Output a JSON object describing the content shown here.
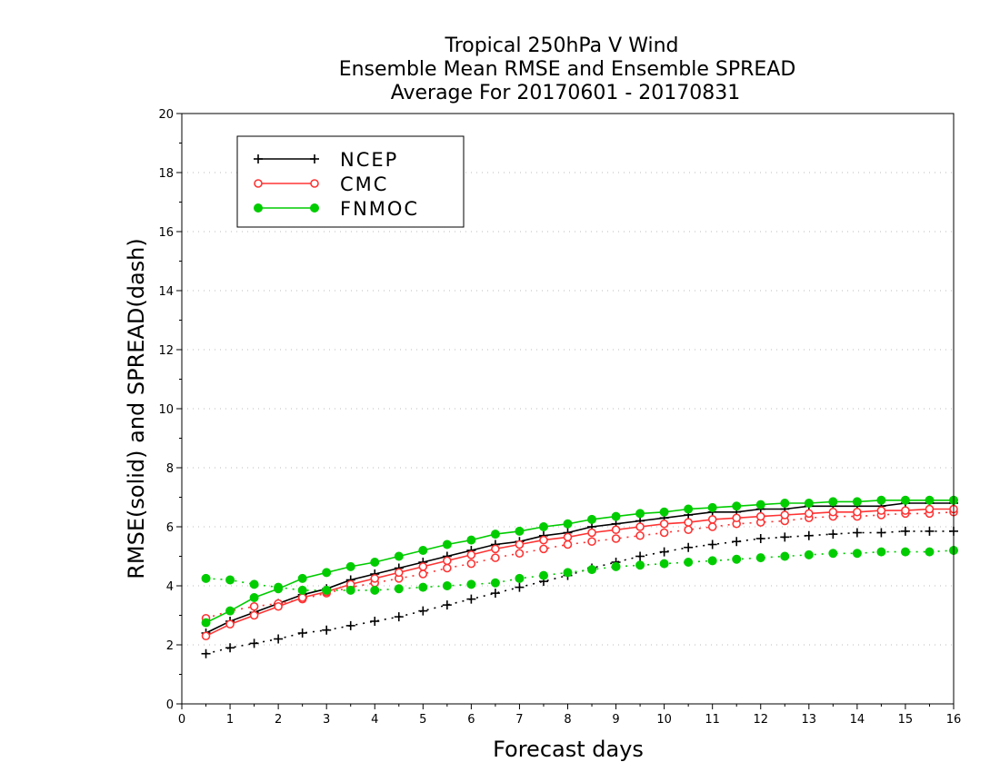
{
  "chart_data": {
    "type": "line",
    "title": [
      "Tropical 250hPa V Wind",
      "Ensemble Mean RMSE and Ensemble SPREAD",
      "Average For 20170601 - 20170831"
    ],
    "xlabel": "Forecast days",
    "ylabel": "RMSE(solid) and SPREAD(dash)",
    "xlim": [
      0,
      16
    ],
    "ylim": [
      0,
      20
    ],
    "xticks": [
      0,
      1,
      2,
      3,
      4,
      5,
      6,
      7,
      8,
      9,
      10,
      11,
      12,
      13,
      14,
      15,
      16
    ],
    "xtick_labels": [
      "0",
      "1",
      "2",
      "3",
      "4",
      "5",
      "6",
      "7",
      "8",
      "9",
      "10",
      "11",
      "12",
      "13",
      "14",
      "15",
      "16"
    ],
    "yticks": [
      0,
      2,
      4,
      6,
      8,
      10,
      12,
      14,
      16,
      18,
      20
    ],
    "ytick_labels": [
      "0",
      "2",
      "4",
      "6",
      "8",
      "10",
      "12",
      "14",
      "16",
      "18",
      "20"
    ],
    "grid": true,
    "legend_position": "top-left",
    "x": [
      0.5,
      1,
      1.5,
      2,
      2.5,
      3,
      3.5,
      4,
      4.5,
      5,
      5.5,
      6,
      6.5,
      7,
      7.5,
      8,
      8.5,
      9,
      9.5,
      10,
      10.5,
      11,
      11.5,
      12,
      12.5,
      13,
      13.5,
      14,
      14.5,
      15,
      15.5,
      16
    ],
    "series": [
      {
        "name": "NCEP",
        "color": "#000000",
        "marker": "plus",
        "rmse": [
          2.4,
          2.8,
          3.1,
          3.4,
          3.7,
          3.9,
          4.2,
          4.4,
          4.6,
          4.8,
          5.0,
          5.2,
          5.4,
          5.5,
          5.7,
          5.8,
          6.0,
          6.1,
          6.2,
          6.3,
          6.4,
          6.5,
          6.5,
          6.6,
          6.6,
          6.7,
          6.7,
          6.7,
          6.7,
          6.8,
          6.8,
          6.8
        ],
        "spread": [
          1.7,
          1.9,
          2.05,
          2.2,
          2.4,
          2.5,
          2.65,
          2.8,
          2.95,
          3.15,
          3.35,
          3.55,
          3.75,
          3.95,
          4.15,
          4.35,
          4.6,
          4.8,
          5.0,
          5.15,
          5.3,
          5.4,
          5.5,
          5.6,
          5.65,
          5.7,
          5.75,
          5.8,
          5.8,
          5.85,
          5.85,
          5.85
        ]
      },
      {
        "name": "CMC",
        "color": "#ff3333",
        "marker": "open-circle",
        "rmse": [
          2.3,
          2.7,
          3.0,
          3.3,
          3.6,
          3.8,
          4.05,
          4.25,
          4.45,
          4.65,
          4.85,
          5.05,
          5.25,
          5.4,
          5.55,
          5.65,
          5.8,
          5.9,
          6.0,
          6.1,
          6.15,
          6.25,
          6.3,
          6.35,
          6.4,
          6.45,
          6.5,
          6.5,
          6.55,
          6.55,
          6.6,
          6.6
        ],
        "spread": [
          2.9,
          3.15,
          3.3,
          3.4,
          3.55,
          3.75,
          3.95,
          4.1,
          4.25,
          4.4,
          4.6,
          4.75,
          4.95,
          5.1,
          5.25,
          5.4,
          5.5,
          5.6,
          5.7,
          5.8,
          5.9,
          6.0,
          6.1,
          6.15,
          6.2,
          6.3,
          6.35,
          6.35,
          6.4,
          6.45,
          6.45,
          6.5
        ]
      },
      {
        "name": "FNMOC",
        "color": "#00cc00",
        "marker": "filled-circle",
        "rmse": [
          2.75,
          3.15,
          3.6,
          3.9,
          4.25,
          4.45,
          4.65,
          4.8,
          5.0,
          5.2,
          5.4,
          5.55,
          5.75,
          5.85,
          6.0,
          6.1,
          6.25,
          6.35,
          6.45,
          6.5,
          6.6,
          6.65,
          6.7,
          6.75,
          6.8,
          6.8,
          6.85,
          6.85,
          6.9,
          6.9,
          6.9,
          6.9
        ],
        "spread": [
          4.25,
          4.2,
          4.05,
          3.95,
          3.85,
          3.85,
          3.85,
          3.85,
          3.9,
          3.95,
          4.0,
          4.05,
          4.1,
          4.25,
          4.35,
          4.45,
          4.55,
          4.65,
          4.7,
          4.75,
          4.8,
          4.85,
          4.9,
          4.95,
          5.0,
          5.05,
          5.1,
          5.1,
          5.15,
          5.15,
          5.15,
          5.2
        ]
      }
    ]
  }
}
